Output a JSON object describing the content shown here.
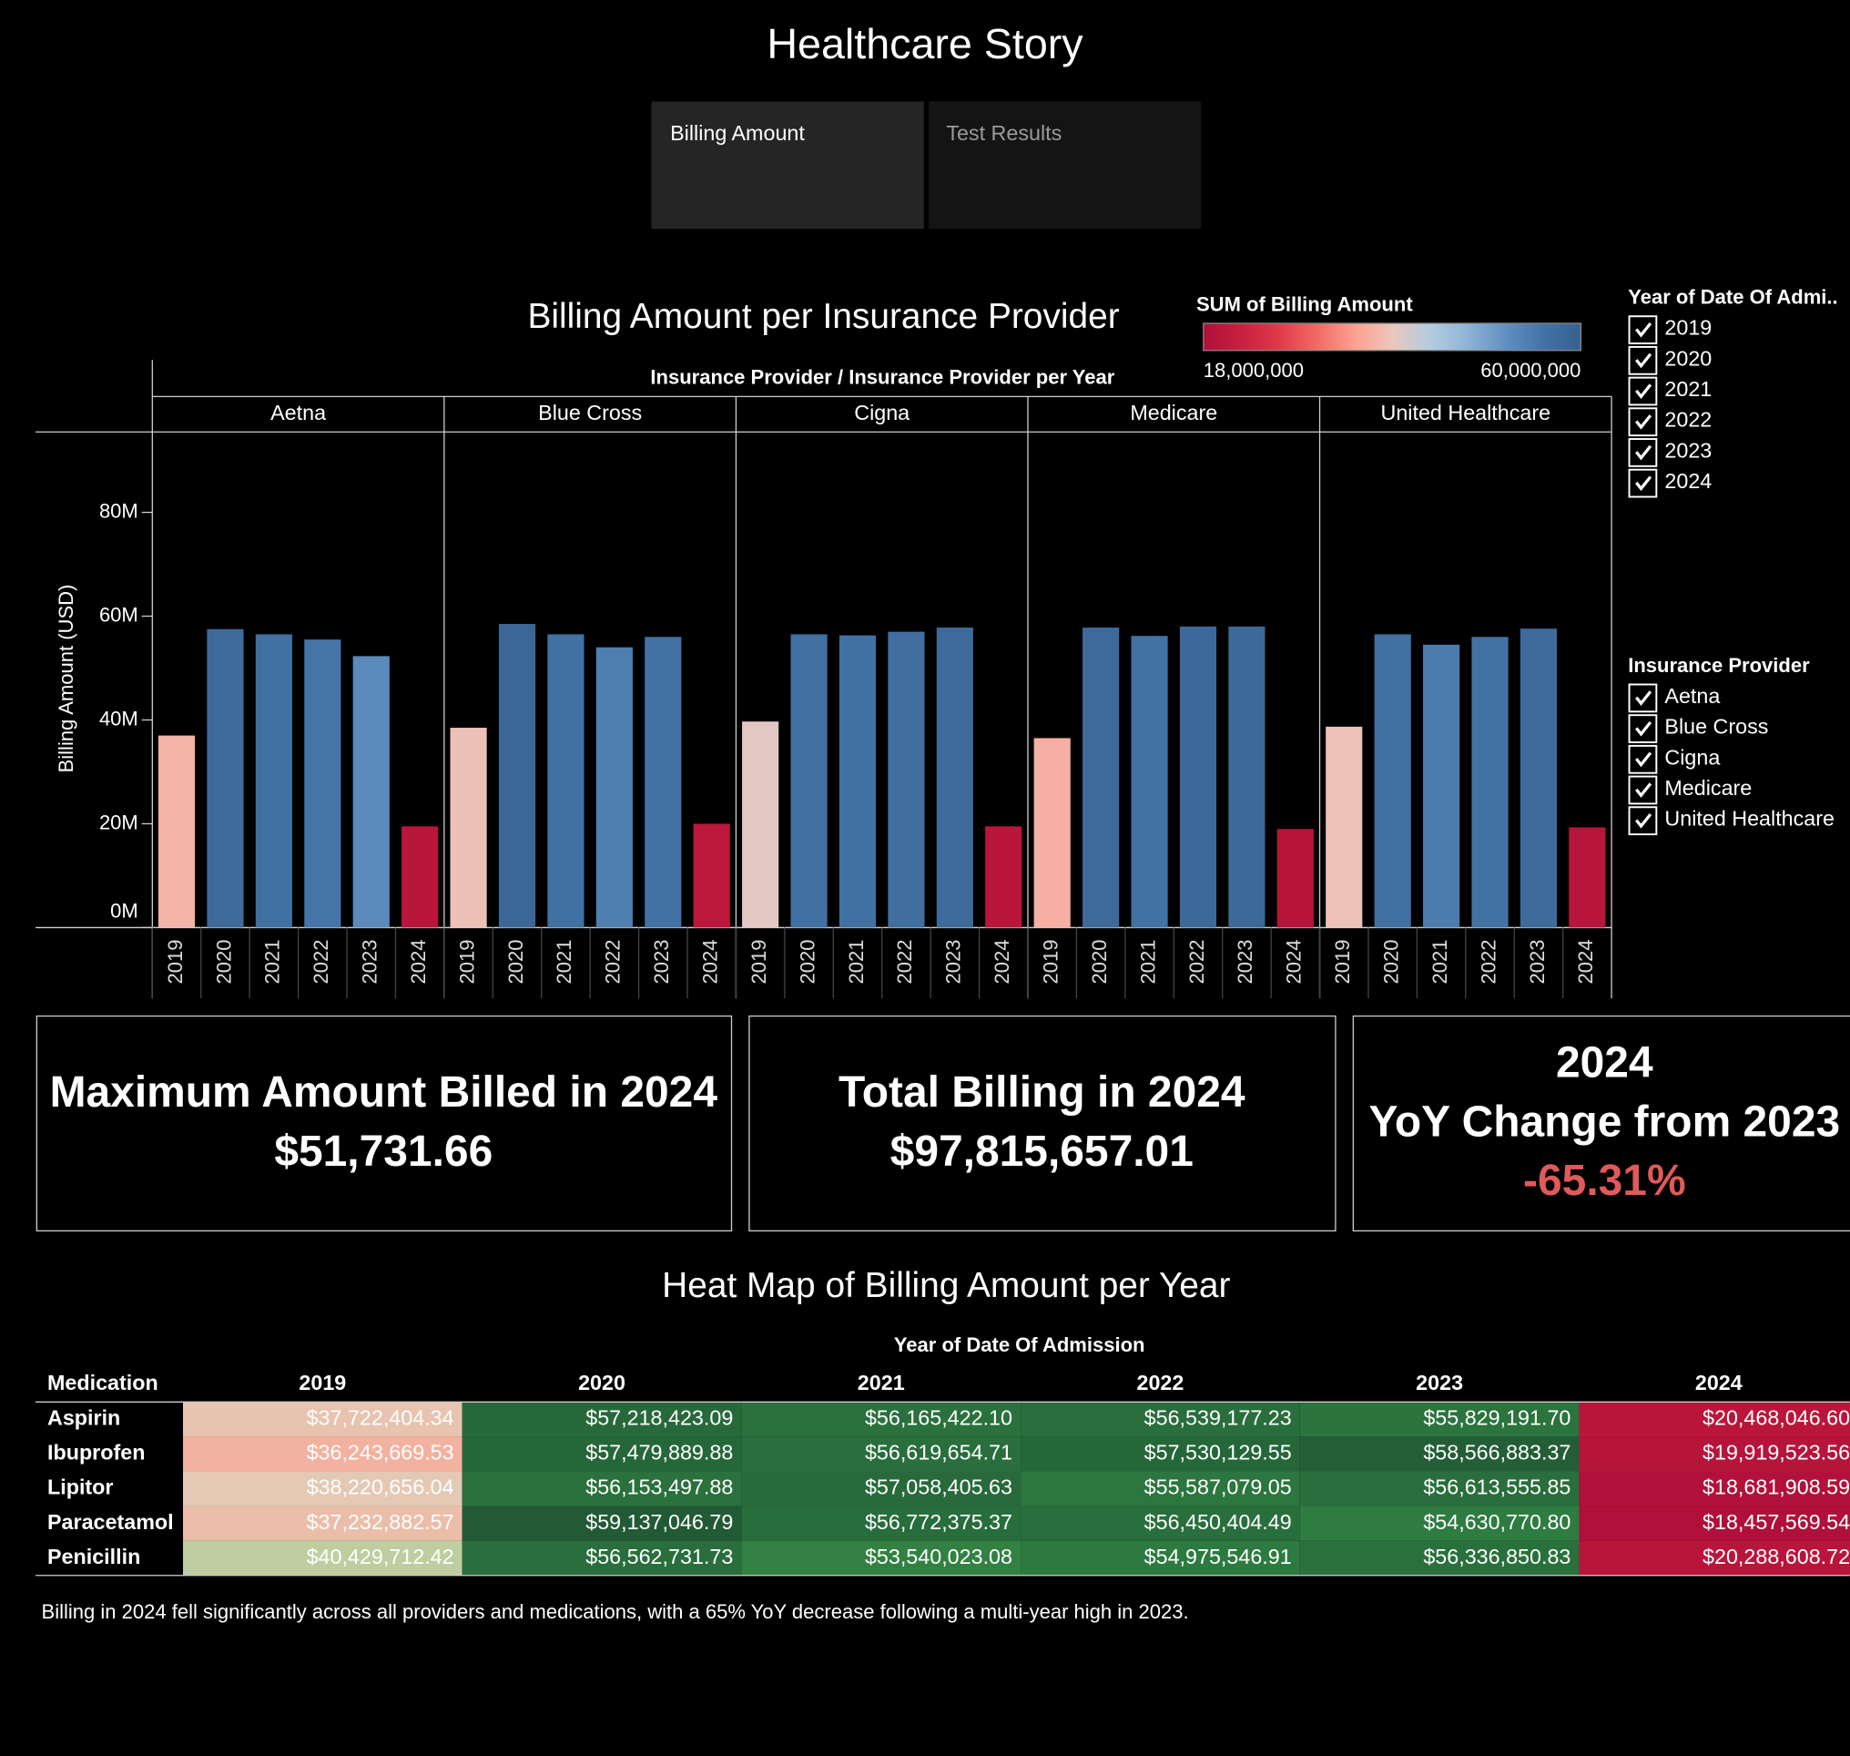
{
  "header": {
    "title": "Healthcare Story",
    "tabs": [
      "Billing Amount",
      "Test Results"
    ]
  },
  "chart_data": [
    {
      "type": "bar",
      "title": "Billing Amount per Insurance Provider",
      "x_label": "Insurance Provider  /  Insurance Provider per Year",
      "y_label": "Billing Amount (USD)",
      "categories": [
        "2019",
        "2020",
        "2021",
        "2022",
        "2023",
        "2024"
      ],
      "series": [
        {
          "name": "Aetna",
          "values": [
            37000000,
            57500000,
            56500000,
            55500000,
            52300000,
            19500000
          ]
        },
        {
          "name": "Blue Cross",
          "values": [
            38500000,
            58500000,
            56500000,
            54000000,
            56000000,
            20000000
          ]
        },
        {
          "name": "Cigna",
          "values": [
            39700000,
            56500000,
            56300000,
            57000000,
            57800000,
            19500000
          ]
        },
        {
          "name": "Medicare",
          "values": [
            36500000,
            57800000,
            56200000,
            58000000,
            58000000,
            19000000
          ]
        },
        {
          "name": "United Healthcare",
          "values": [
            38700000,
            56500000,
            54500000,
            56000000,
            57600000,
            19300000
          ]
        }
      ],
      "ylim": [
        0,
        95500000
      ],
      "yticks": [
        {
          "value": 0,
          "label": "0M"
        },
        {
          "value": 20000000,
          "label": "20M"
        },
        {
          "value": 40000000,
          "label": "40M"
        },
        {
          "value": 60000000,
          "label": "60M"
        },
        {
          "value": 80000000,
          "label": "80M"
        }
      ],
      "color_legend": {
        "title": "SUM of Billing Amount",
        "range": [
          {
            "value": 18000000,
            "label": "18,000,000"
          },
          {
            "value": 60000000,
            "label": "60,000,000"
          }
        ],
        "colors": [
          "#b0103a",
          "#c8203f",
          "#e0394a",
          "#f26a62",
          "#fca090",
          "#ecc6bc",
          "#b4cce0",
          "#8fb3d6",
          "#6090c0",
          "#4373a6",
          "#36608e"
        ]
      }
    },
    {
      "type": "heatmap",
      "title": "Heat Map of Billing Amount per Year",
      "column_title": "Year of Date Of Admission",
      "row_title": "Medication",
      "columns": [
        "2019",
        "2020",
        "2021",
        "2022",
        "2023",
        "2024"
      ],
      "rows": [
        "Aspirin",
        "Ibuprofen",
        "Lipitor",
        "Paracetamol",
        "Penicillin"
      ],
      "values": [
        [
          37722404.34,
          57218423.09,
          56165422.1,
          56539177.23,
          55829191.7,
          20468046.6
        ],
        [
          36243669.53,
          57479889.88,
          56619654.71,
          57530129.55,
          58566883.37,
          19919523.56
        ],
        [
          38220656.04,
          56153497.88,
          57058405.63,
          55587079.05,
          56613555.85,
          18681908.59
        ],
        [
          37232882.57,
          59137046.79,
          56772375.37,
          56450404.49,
          54630770.8,
          18457569.54
        ],
        [
          40429712.42,
          56562731.73,
          53540023.08,
          54975546.91,
          56336850.83,
          20288608.72
        ]
      ],
      "value_labels": [
        [
          "$37,722,404.34",
          "$57,218,423.09",
          "$56,165,422.10",
          "$56,539,177.23",
          "$55,829,191.70",
          "$20,468,046.60"
        ],
        [
          "$36,243,669.53",
          "$57,479,889.88",
          "$56,619,654.71",
          "$57,530,129.55",
          "$58,566,883.37",
          "$19,919,523.56"
        ],
        [
          "$38,220,656.04",
          "$56,153,497.88",
          "$57,058,405.63",
          "$55,587,079.05",
          "$56,613,555.85",
          "$18,681,908.59"
        ],
        [
          "$37,232,882.57",
          "$59,137,046.79",
          "$56,772,375.37",
          "$56,450,404.49",
          "$54,630,770.80",
          "$18,457,569.54"
        ],
        [
          "$40,429,712.42",
          "$56,562,731.73",
          "$53,540,023.08",
          "$54,975,546.91",
          "$56,336,850.83",
          "$20,288,608.72"
        ]
      ],
      "colors": [
        "#b0103a",
        "#c41c3c",
        "#d83a48",
        "#ee7a6a",
        "#fca08e",
        "#e0d0bc",
        "#8ccc78",
        "#52a858",
        "#3a8c48",
        "#2d7a40",
        "#225a36"
      ]
    }
  ],
  "filters": [
    {
      "title": "Year of Date Of Admi..",
      "items": [
        "2019",
        "2020",
        "2021",
        "2022",
        "2023",
        "2024"
      ]
    },
    {
      "title": "Insurance Provider",
      "items": [
        "Aetna",
        "Blue Cross",
        "Cigna",
        "Medicare",
        "United Healthcare"
      ]
    }
  ],
  "kpis": [
    {
      "lines": [
        "Maximum Amount Billed in 2024",
        "$51,731.66"
      ]
    },
    {
      "lines": [
        "Total Billing in 2024",
        "$97,815,657.01"
      ]
    },
    {
      "lines": [
        "2024",
        "YoY Change from 2023",
        "-65.31%"
      ]
    }
  ],
  "footnote": "Billing in 2024 fell significantly across all providers and medications, with a 65% YoY decrease following a multi-year high in 2023."
}
